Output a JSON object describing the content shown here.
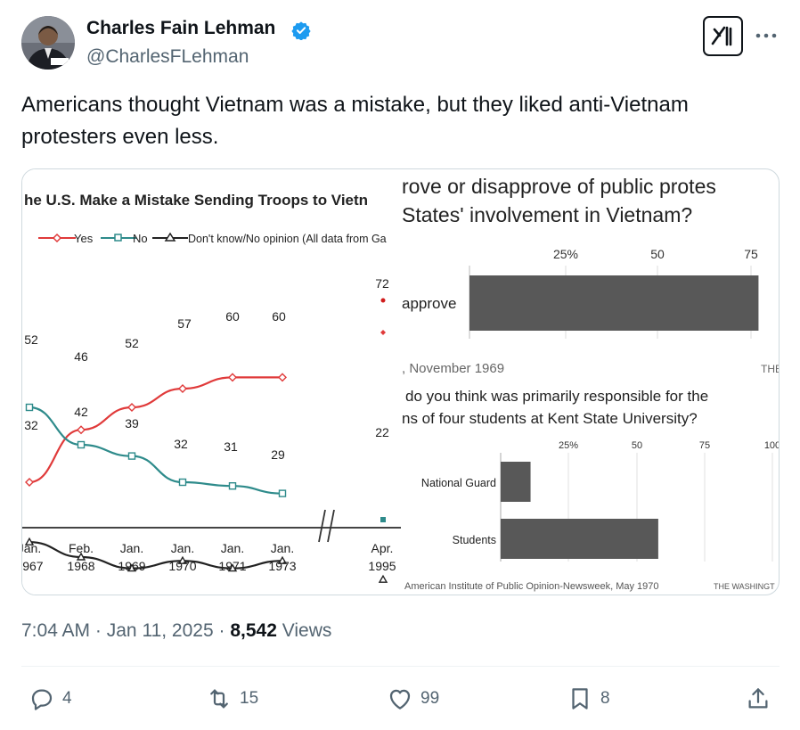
{
  "author": {
    "name": "Charles Fain Lehman",
    "handle": "@CharlesFLehman",
    "avatar_icon": "person-avatar",
    "verified_color": "#1d9bf0"
  },
  "tweet": {
    "text": "Americans thought Vietnam was a mistake, but they liked anti-Vietnam protesters even less."
  },
  "left_chart": {
    "title": "he U.S. Make a Mistake Sending Troops to Vietn",
    "legend": [
      "Yes",
      "No",
      "Don't know/No opinion (All data from Ga"
    ],
    "x_labels": [
      [
        "Jan.",
        "1967"
      ],
      [
        "Feb.",
        "1968"
      ],
      [
        "Jan.",
        "1969"
      ],
      [
        "Jan.",
        "1970"
      ],
      [
        "Jan.",
        "1971"
      ],
      [
        "Jan.",
        "1973"
      ],
      [
        "Apr.",
        "1995"
      ]
    ],
    "yes_labels": [
      "32",
      "46",
      "52",
      "57",
      "60",
      "60",
      "72"
    ],
    "no_labels": [
      "52",
      "42",
      "39",
      "32",
      "31",
      "29",
      "22"
    ]
  },
  "right_chart_1": {
    "title_line1": "rove or disapprove of public protes",
    "title_line2": "States' involvement in Vietnam?",
    "ticks": [
      "25%",
      "50",
      "75"
    ],
    "bar_label": "approve",
    "source": ", November 1969",
    "credit": "THE"
  },
  "right_chart_2": {
    "title_line1": "do you think was primarily responsible for the",
    "title_line2": "ns of four students at Kent State University?",
    "ticks": [
      "25%",
      "50",
      "75",
      "100"
    ],
    "bars": [
      {
        "label": "National Guard"
      },
      {
        "label": "Students"
      }
    ],
    "source": "American Institute of Public Opinion-Newsweek, May 1970",
    "credit": "THE WASHINGT"
  },
  "chart_data": [
    {
      "type": "line",
      "title": "he U.S. Make a Mistake Sending Troops to Vietn",
      "x": [
        "Jan. 1967",
        "Feb. 1968",
        "Jan. 1969",
        "Jan. 1970",
        "Jan. 1971",
        "Jan. 1973",
        "Apr. 1995"
      ],
      "series": [
        {
          "name": "Yes",
          "values": [
            32,
            46,
            52,
            57,
            60,
            60,
            72
          ],
          "color": "#e03a3a"
        },
        {
          "name": "No",
          "values": [
            52,
            42,
            39,
            32,
            31,
            29,
            22
          ],
          "color": "#2e8b8b"
        },
        {
          "name": "Don't know/No opinion",
          "values": [
            16,
            12,
            9,
            11,
            9,
            11,
            6
          ],
          "color": "#222222"
        }
      ]
    },
    {
      "type": "bar",
      "title": "rove or disapprove of public protes States' involvement in Vietnam?",
      "categories": [
        "approve"
      ],
      "values": [
        77
      ],
      "xlim": [
        0,
        80
      ]
    },
    {
      "type": "bar",
      "title": "do you think was primarily responsible for the ns of four students at Kent State University?",
      "categories": [
        "National Guard",
        "Students"
      ],
      "values": [
        11,
        58
      ],
      "xlim": [
        0,
        100
      ]
    }
  ],
  "stats": {
    "time": "7:04 AM",
    "sep": "·",
    "date": "Jan 11, 2025",
    "views_count": "8,542",
    "views_label": "Views"
  },
  "actions": {
    "replies": "4",
    "reposts": "15",
    "likes": "99",
    "bookmarks": "8"
  },
  "icons": {
    "reply": "reply-icon",
    "repost": "repost-icon",
    "like": "heart-icon",
    "bookmark": "bookmark-icon",
    "share": "share-icon",
    "more": "more-icon",
    "grok": "grok-icon"
  }
}
